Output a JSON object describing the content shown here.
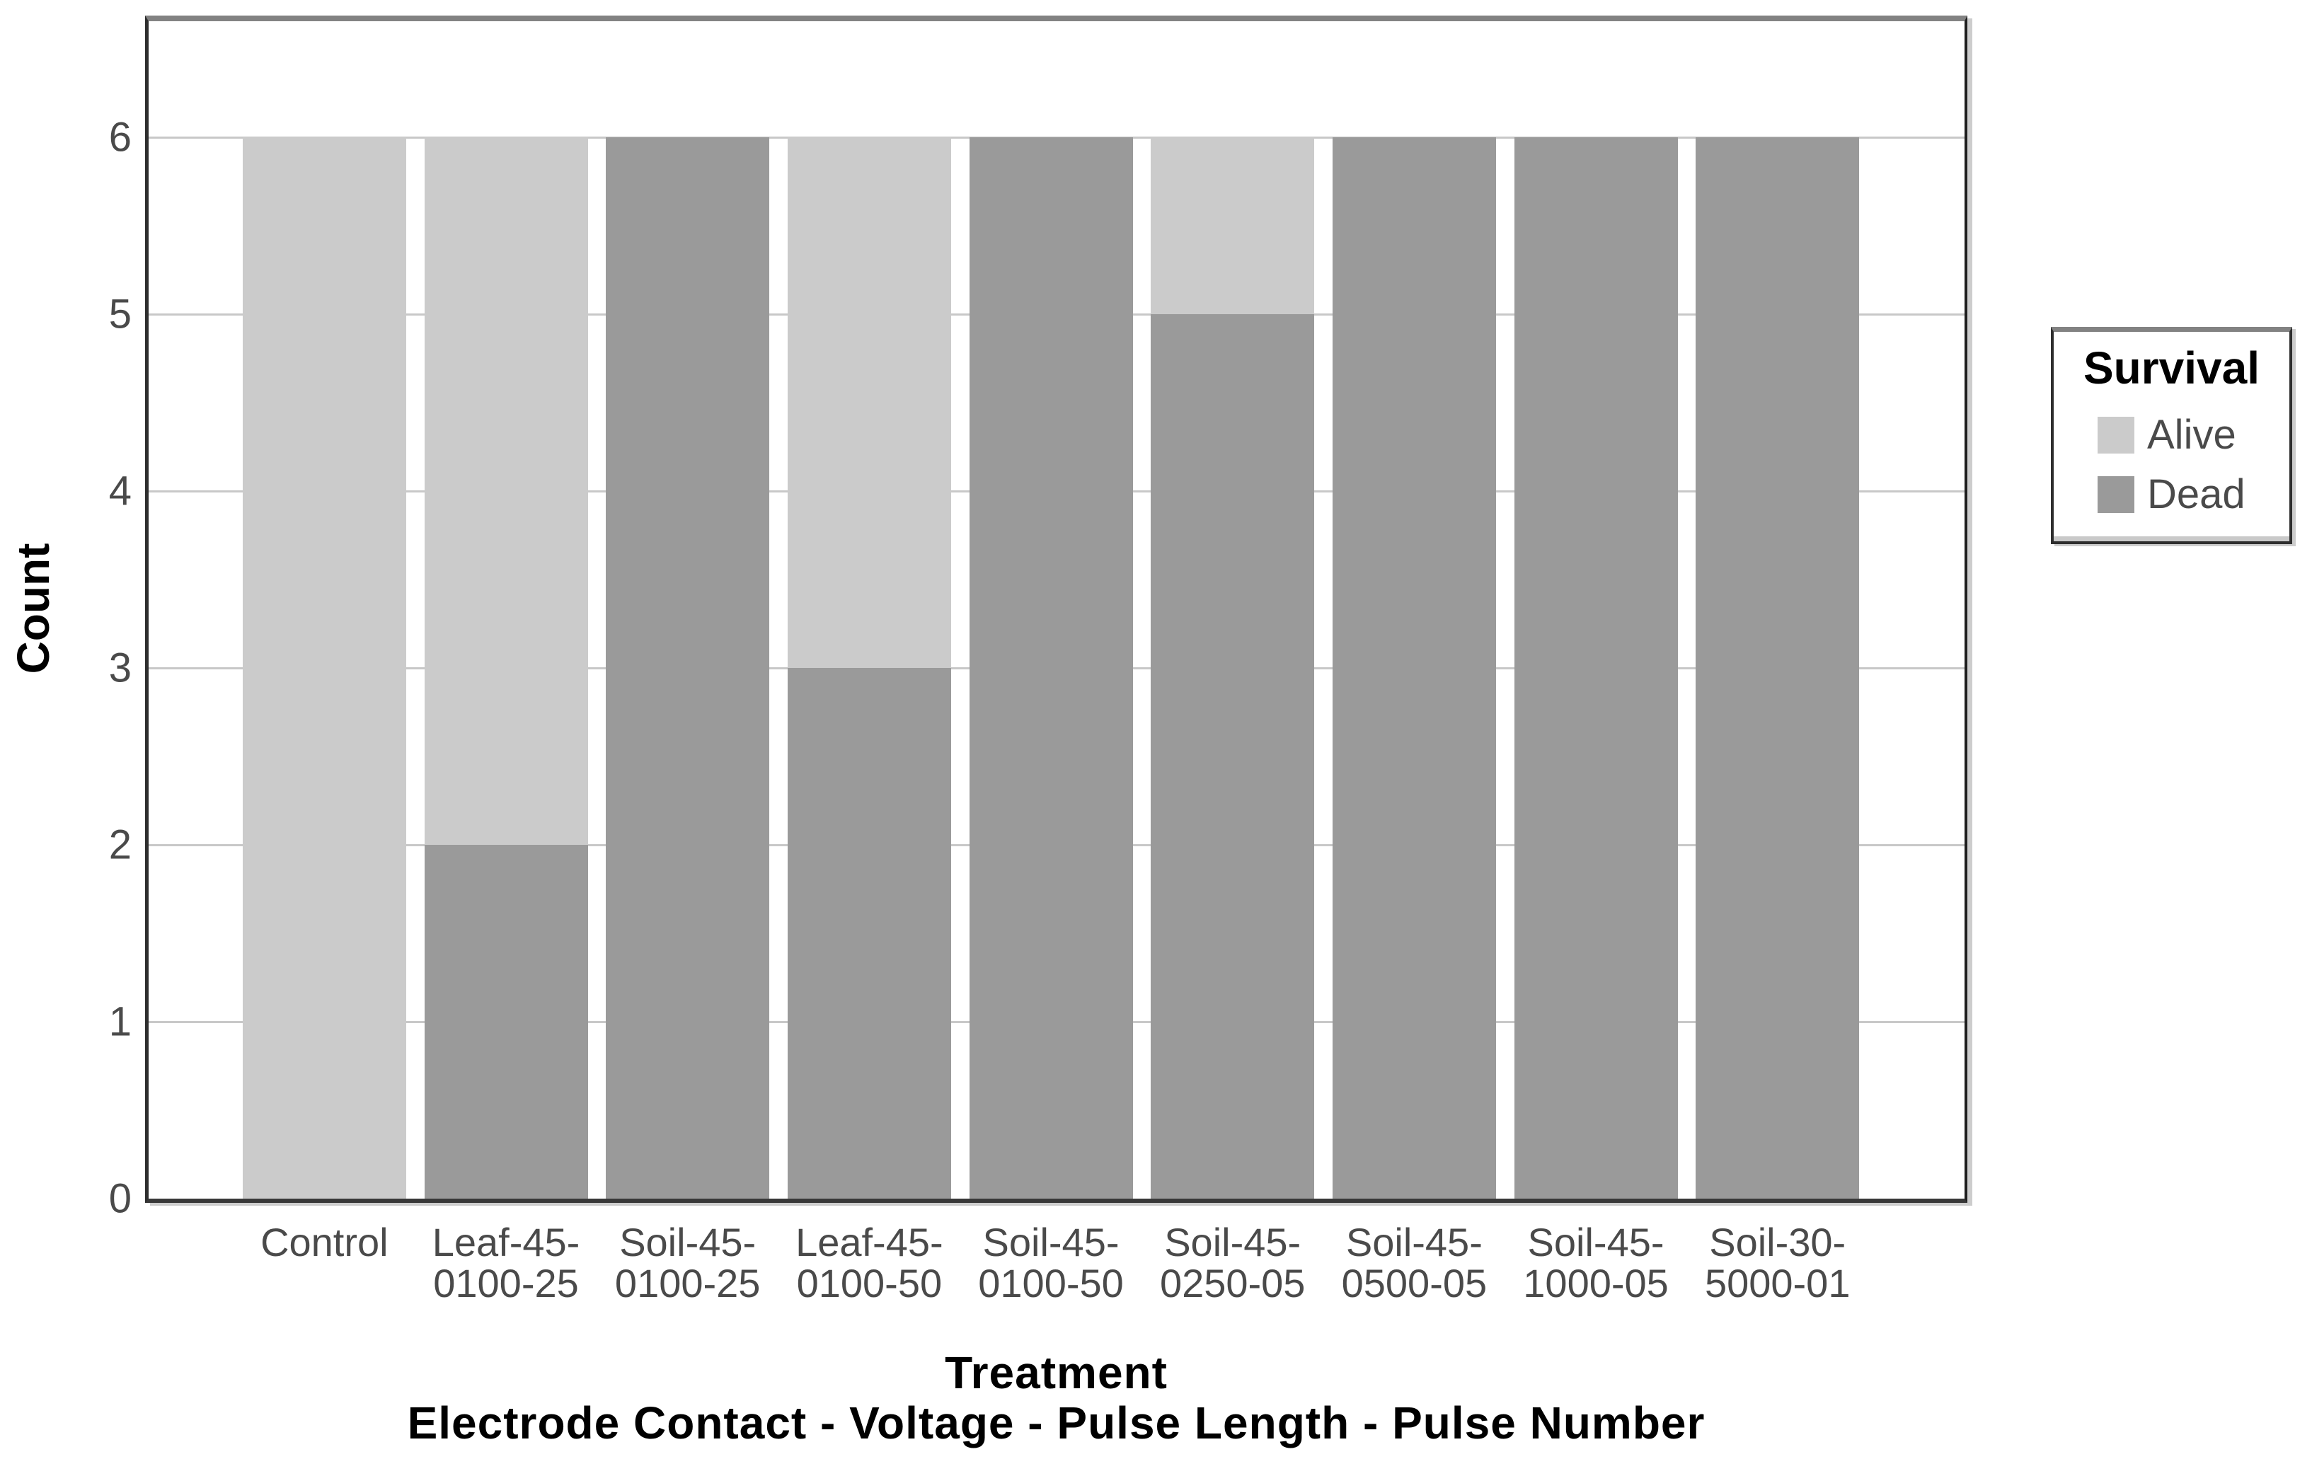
{
  "chart_data": {
    "type": "bar",
    "stacked": true,
    "categories": [
      "Control",
      "Leaf-45-0100-25",
      "Soil-45-0100-25",
      "Leaf-45-0100-50",
      "Soil-45-0100-50",
      "Soil-45-0250-05",
      "Soil-45-0500-05",
      "Soil-45-1000-05",
      "Soil-30-5000-01"
    ],
    "category_tick_lines": [
      [
        "Control"
      ],
      [
        "Leaf-45-",
        "0100-25"
      ],
      [
        "Soil-45-",
        "0100-25"
      ],
      [
        "Leaf-45-",
        "0100-50"
      ],
      [
        "Soil-45-",
        "0100-50"
      ],
      [
        "Soil-45-",
        "0250-05"
      ],
      [
        "Soil-45-",
        "0500-05"
      ],
      [
        "Soil-45-",
        "1000-05"
      ],
      [
        "Soil-30-",
        "5000-01"
      ]
    ],
    "series": [
      {
        "name": "Alive",
        "color": "#cbcbcb",
        "values": [
          6,
          4,
          0,
          3,
          0,
          1,
          0,
          0,
          0
        ]
      },
      {
        "name": "Dead",
        "color": "#9a9a9a",
        "values": [
          0,
          2,
          6,
          3,
          6,
          5,
          6,
          6,
          6
        ]
      }
    ],
    "xlabel": "Treatment",
    "xlabel_sub": "Electrode Contact - Voltage - Pulse Length - Pulse Number",
    "ylabel": "Count",
    "yticks": [
      0,
      1,
      2,
      3,
      4,
      5,
      6
    ],
    "ylim": [
      0,
      6.65
    ],
    "grid": "horizontal",
    "legend": {
      "title": "Survival",
      "position": "right",
      "entries": [
        {
          "label": "Alive",
          "color": "#cbcbcb"
        },
        {
          "label": "Dead",
          "color": "#9a9a9a"
        }
      ]
    },
    "colors": {
      "background": "#ffffff",
      "gridline": "#c8c8c8",
      "frame_top": "#828282",
      "axis_line": "#2e2e2e",
      "tick_text": "#4a4a4a",
      "title_text": "#000000"
    }
  }
}
